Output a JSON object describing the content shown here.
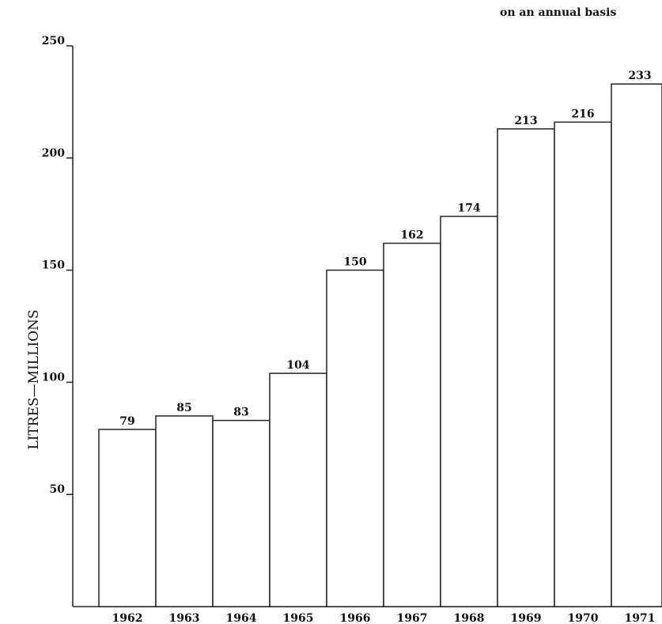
{
  "chart_data": {
    "type": "bar",
    "subtitle": "on an annual basis",
    "ylabel": "LITRES—MILLIONS",
    "xlabel": "",
    "categories": [
      "1962",
      "1963",
      "1964",
      "1965",
      "1966",
      "1967",
      "1968",
      "1969",
      "1970",
      "1971"
    ],
    "values": [
      79,
      85,
      83,
      104,
      150,
      162,
      174,
      213,
      216,
      233
    ],
    "ylim": [
      0,
      250
    ],
    "yticks": [
      50,
      100,
      150,
      200,
      250
    ],
    "grid": false,
    "legend": "none",
    "bar_fill": "#ffffff",
    "line_color": "#222222"
  }
}
